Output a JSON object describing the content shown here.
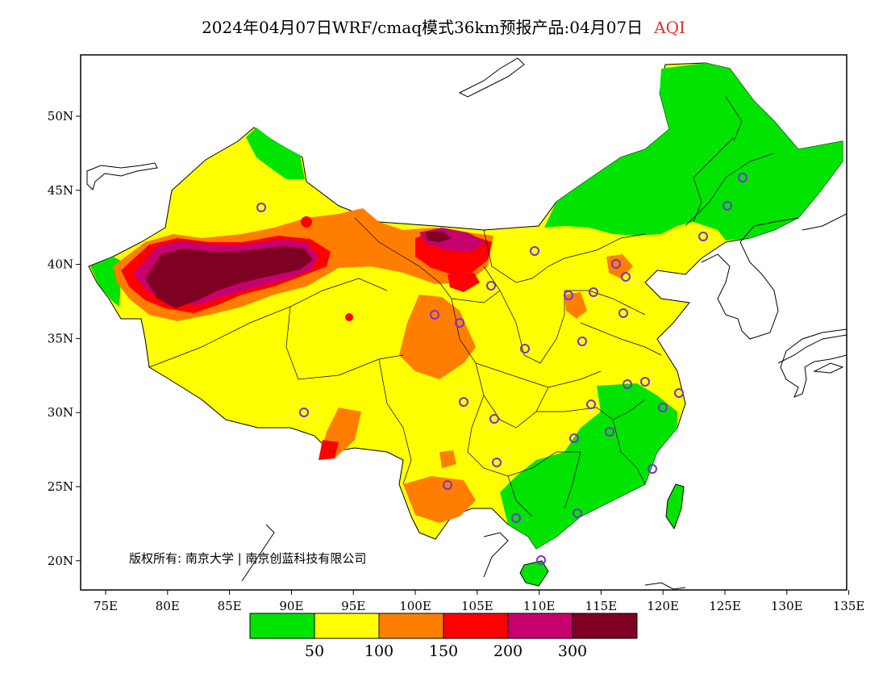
{
  "title": {
    "main": "2024年04月07日WRF/cmaq模式36km预报产品:04月07日",
    "tag": "AQI"
  },
  "axes": {
    "lon_labels": [
      "75E",
      "80E",
      "85E",
      "90E",
      "95E",
      "100E",
      "105E",
      "110E",
      "115E",
      "120E",
      "125E",
      "130E",
      "135E"
    ],
    "lat_labels": [
      "50N",
      "45N",
      "40N",
      "35N",
      "30N",
      "25N",
      "20N"
    ]
  },
  "copyright": "版权所有: 南京大学 | 南京创蓝科技有限公司",
  "legend": {
    "colors": [
      "#00e400",
      "#ffff00",
      "#ff7e00",
      "#ff0000",
      "#c8006e",
      "#7e0023"
    ],
    "labels": [
      "50",
      "100",
      "150",
      "200",
      "300"
    ]
  },
  "colors": {
    "good": "#00e400",
    "moderate": "#ffff00",
    "usg": "#ff7e00",
    "unhealthy": "#ff0000",
    "very_unhealthy": "#c8006e",
    "hazardous": "#7e0023",
    "city_marker": "#7a2fd8"
  }
}
